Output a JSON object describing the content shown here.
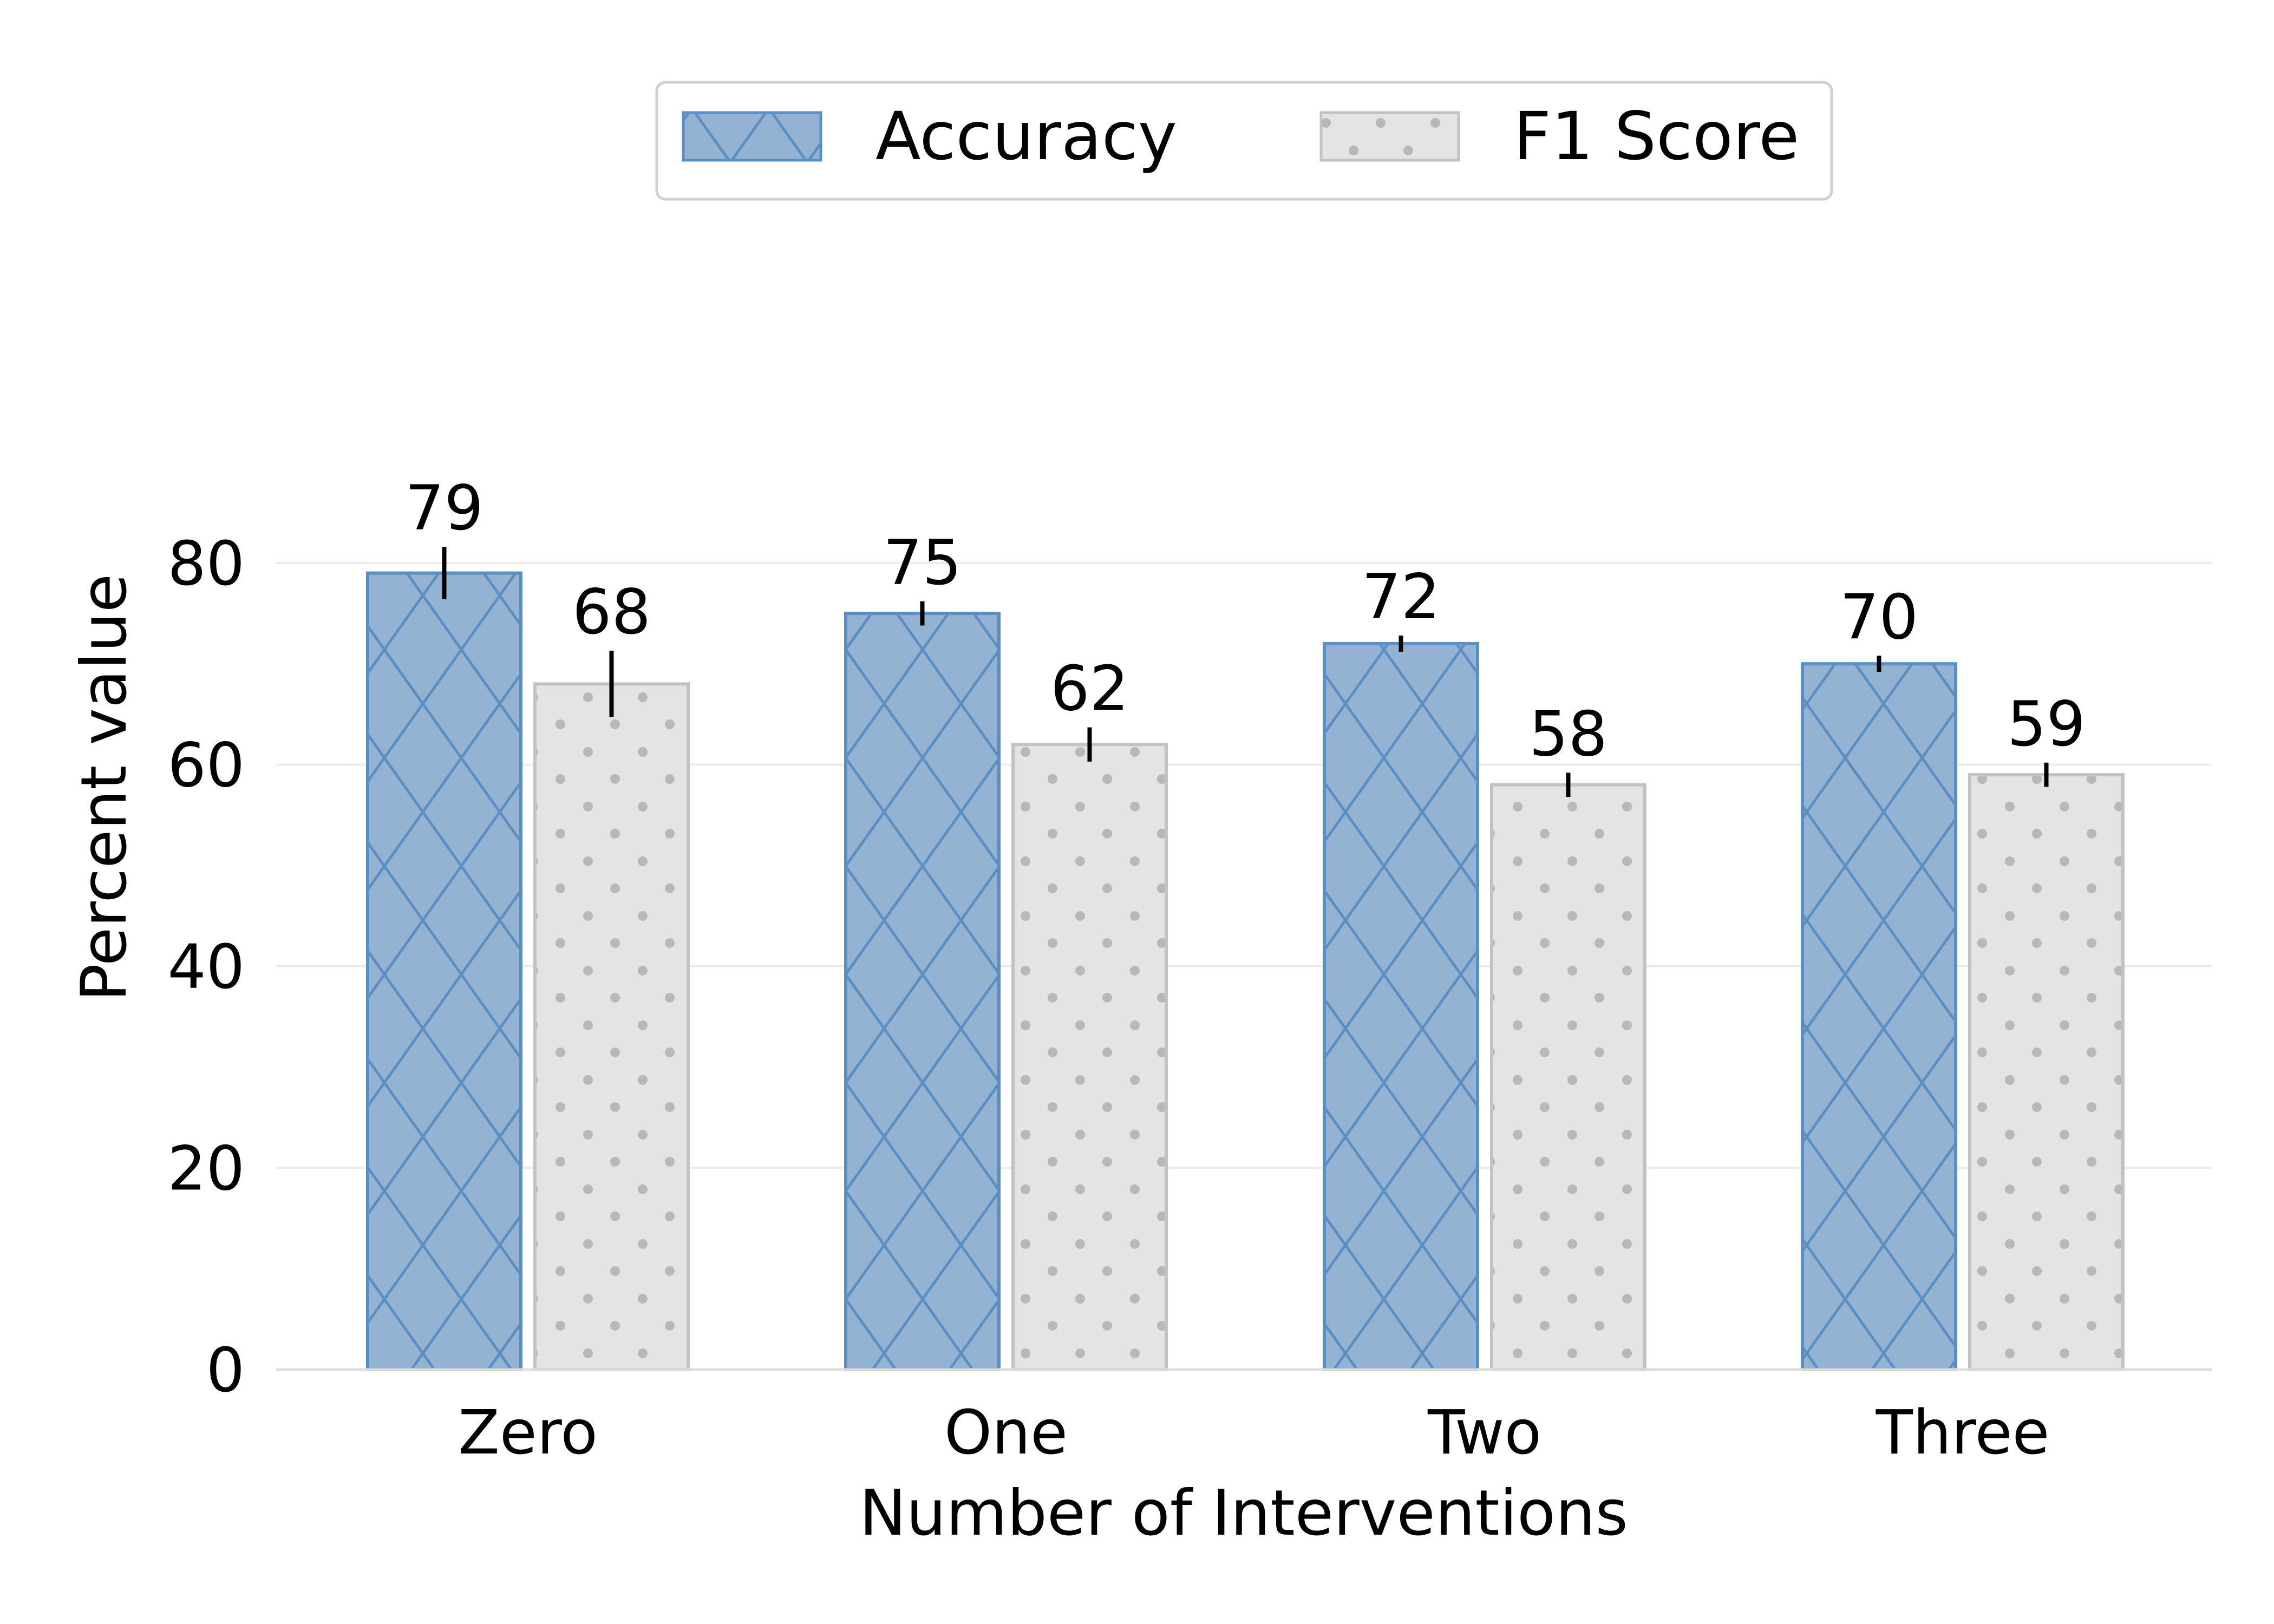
{
  "chart_data": {
    "type": "bar",
    "categories": [
      "Zero",
      "One",
      "Two",
      "Three"
    ],
    "series": [
      {
        "name": "Accuracy",
        "values": [
          79,
          75,
          72,
          70
        ],
        "errors": [
          2.6,
          1.2,
          0.8,
          0.8
        ],
        "color": "#94b3d2",
        "edge_color": "#5b8fc3",
        "pattern": "crosshatch"
      },
      {
        "name": "F1 Score",
        "values": [
          68,
          62,
          58,
          59
        ],
        "errors": [
          3.3,
          1.7,
          1.2,
          1.2
        ],
        "color": "#e4e4e4",
        "edge_color": "#c2c2c2",
        "pattern": "dots"
      }
    ],
    "data_labels": [
      [
        "79",
        "75",
        "72",
        "70"
      ],
      [
        "68",
        "62",
        "58",
        "59"
      ]
    ],
    "xlabel": "Number of Interventions",
    "ylabel": "Percent value",
    "ylim": [
      0,
      80
    ],
    "yticks": [
      "0",
      "20",
      "40",
      "60",
      "80"
    ],
    "grid": true,
    "legend_position": "top-center"
  }
}
